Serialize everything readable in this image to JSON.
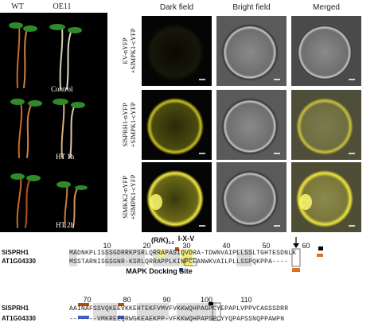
{
  "plants": {
    "genotypes": [
      "WT",
      "OE11"
    ],
    "treatments": [
      "Control",
      "HT 1h",
      "HT 2h"
    ]
  },
  "microscopy": {
    "columns": [
      "Dark field",
      "Bright field",
      "Merged"
    ],
    "rows": [
      [
        "EV-nYFP",
        "+SlMPK1-cYFP"
      ],
      [
        "SlSPRH1-nYFP",
        "+SlMPK1-cYFP"
      ],
      [
        "SlMKK2-nYFP",
        "+SlMPK1-cYFP"
      ]
    ]
  },
  "alignment": {
    "motifs": {
      "rk": "(R/K)",
      "rk_sub": "1-2",
      "ixv": "I-X-V",
      "docking": "MAPK Docking Site"
    },
    "blocks": [
      {
        "positions": [
          "10",
          "20",
          "30",
          "40",
          "50",
          "60"
        ],
        "sequences": [
          {
            "name": "SlSPRH1",
            "seq": "MADNKPLISSSGDRRKPSRLQRRAPASIQVDRA-TDWNVAIPLLSSLTGHTESDNLK"
          },
          {
            "name": "AT1G04330",
            "seq": "MSSTARNISGSGNR-KSRLQRRAPPLKINPCEANWKVAILPLLSSPQKPPA----"
          }
        ]
      },
      {
        "positions": [
          "70",
          "80",
          "90",
          "100",
          "110"
        ],
        "sequences": [
          {
            "name": "SlSPRH1",
            "seq": "AAINAFSSVQKEEVKKEHTEKFVMVFVKKWQHPAGPCYEPAPLVPPVCAGSSDRR"
          },
          {
            "name": "AT1G04330",
            "seq": "-------VMKREEQRWGKEAEKPP-VFKKWQHPAPSPCYYQPAPSSNQPPAWPN"
          }
        ]
      }
    ]
  }
}
